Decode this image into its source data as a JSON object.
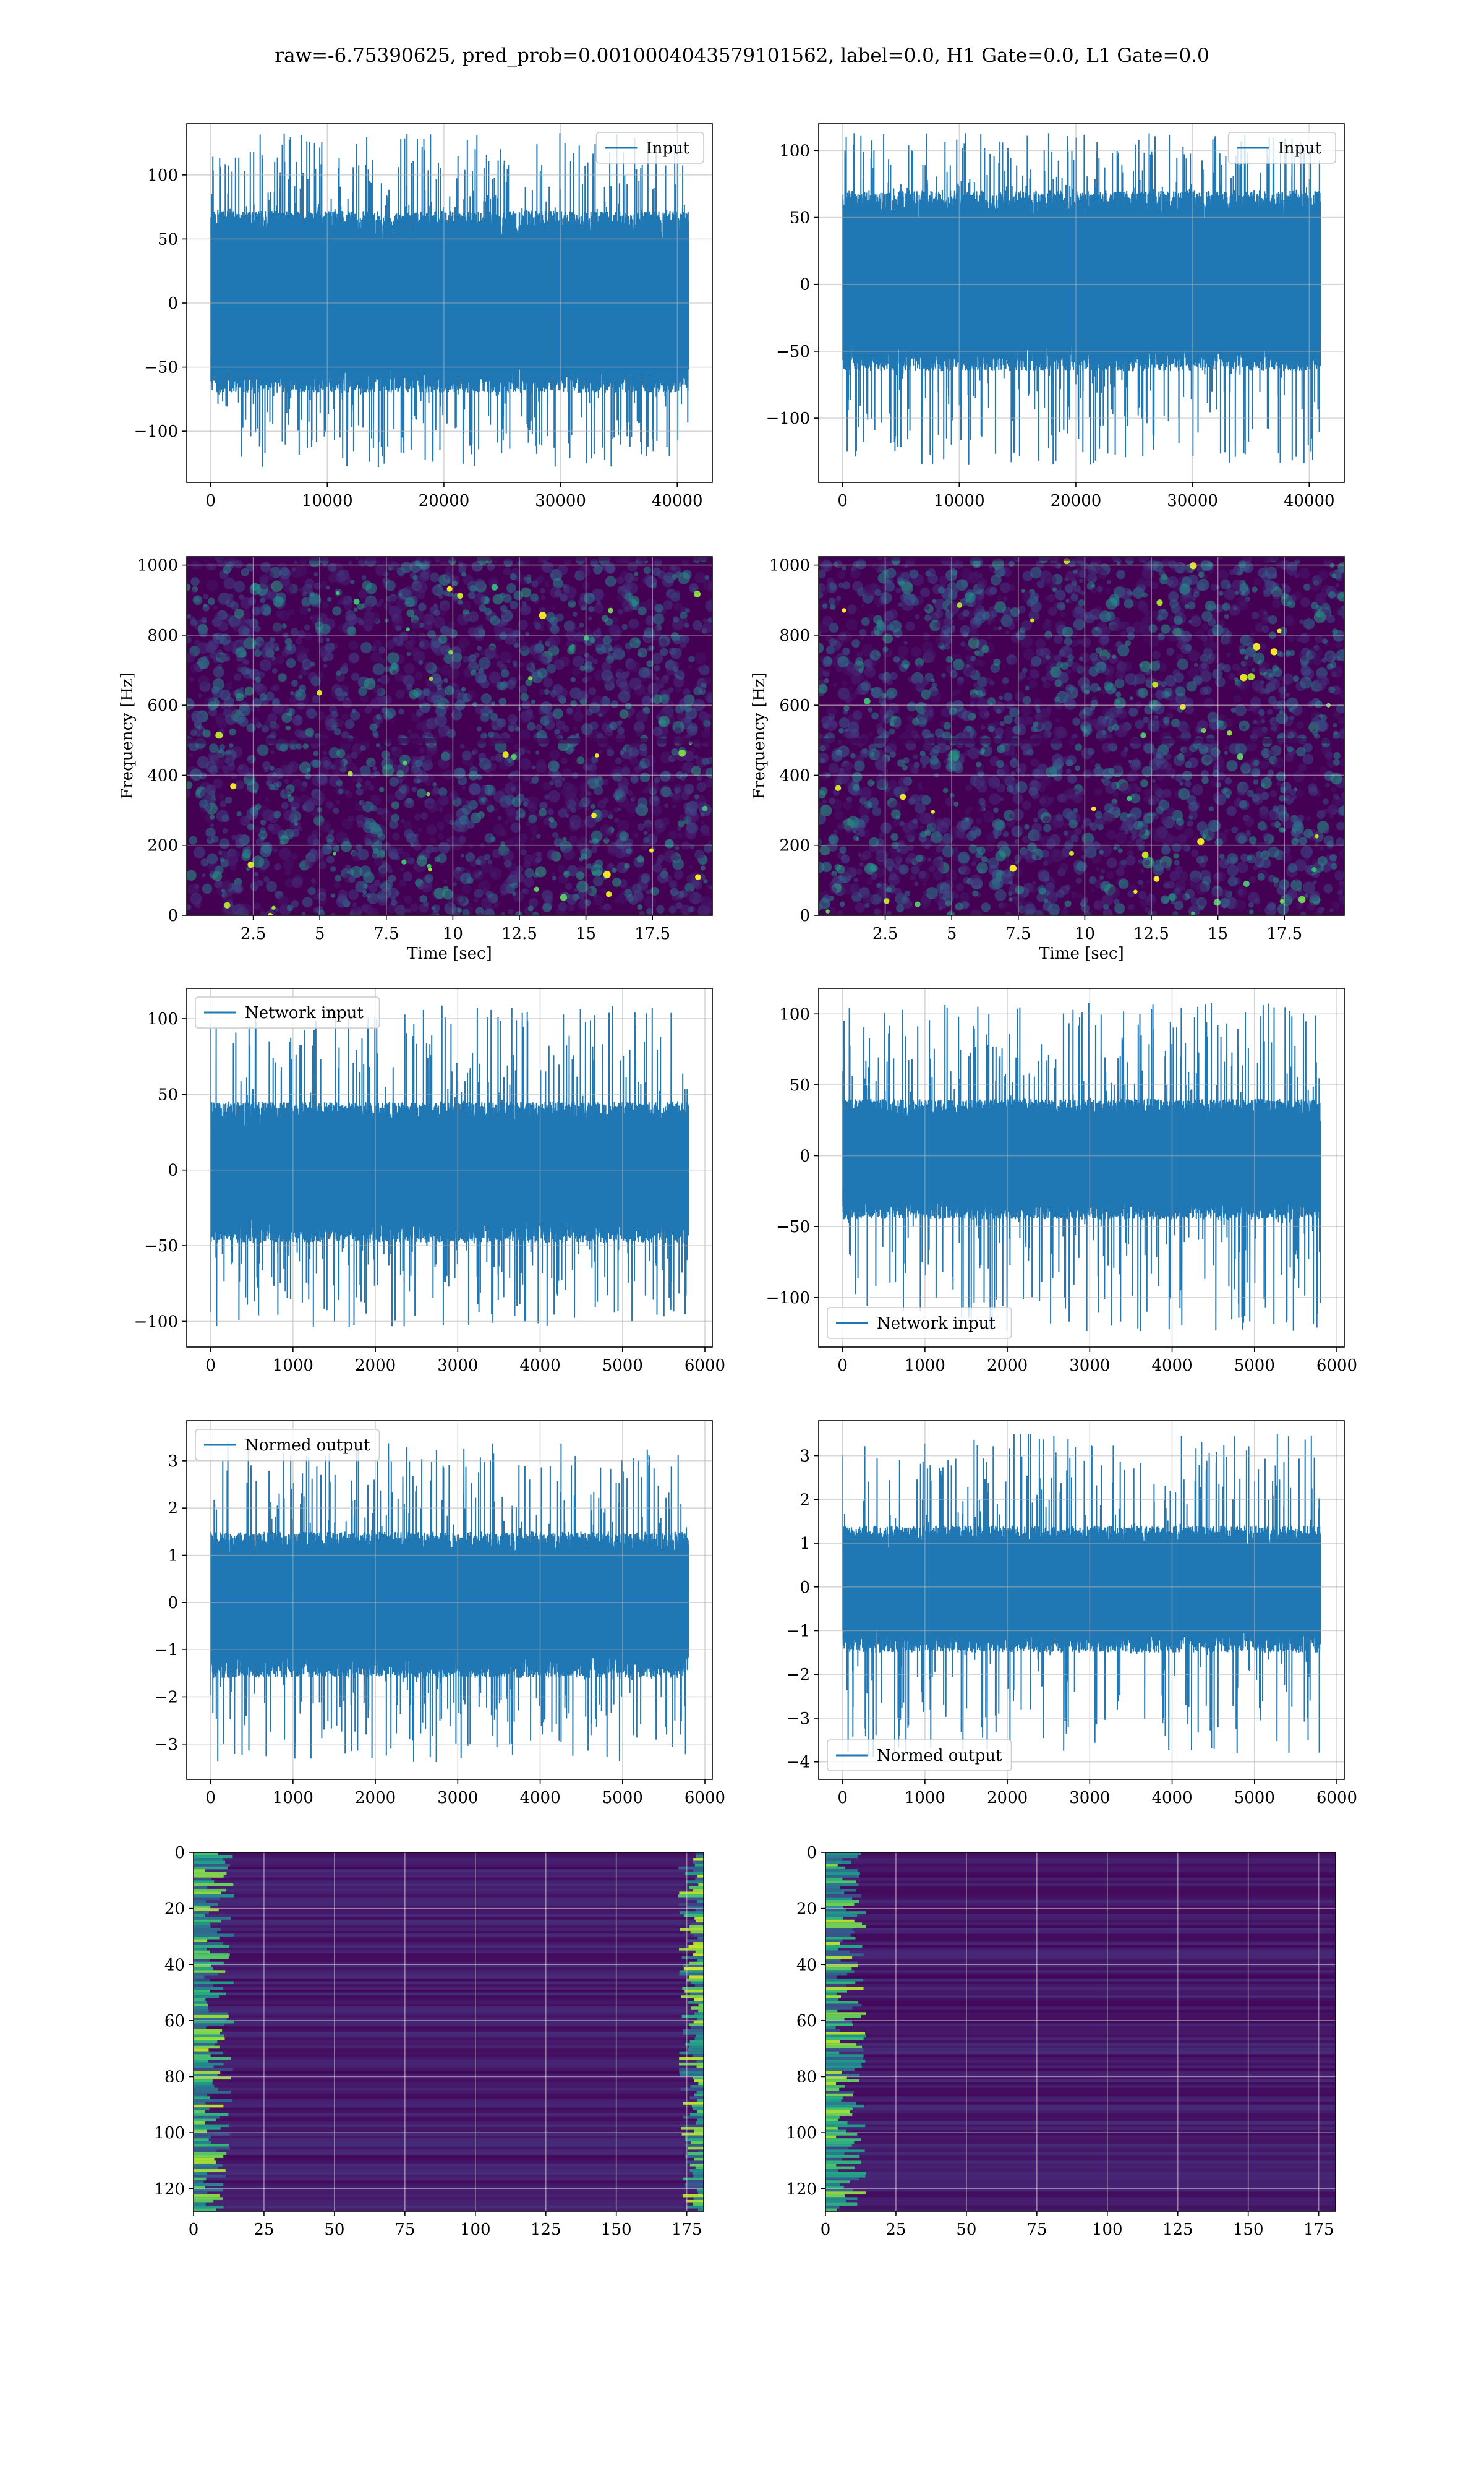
{
  "suptitle": "raw=-6.75390625, pred_prob=0.0010004043579101562, label=0.0, H1 Gate=0.0, L1 Gate=0.0",
  "colors": {
    "line": "#1f77b4",
    "grid": "#b0b0b0",
    "viridis_dark": "#440154",
    "viridis_low": "#3b0f70",
    "viridis_mid": "#31688e",
    "viridis_teal": "#35b779",
    "viridis_yellow": "#fde725"
  },
  "chart_data": [
    {
      "id": "h1-input",
      "type": "line",
      "series": [
        {
          "name": "Input",
          "color": "#1f77b4"
        }
      ],
      "legend_loc": "upper right",
      "xlim": [
        -2048,
        43008
      ],
      "ylim": [
        -140,
        140
      ],
      "xticks": [
        0,
        10000,
        20000,
        30000,
        40000
      ],
      "yticks": [
        -100,
        -50,
        0,
        50,
        100
      ],
      "signal": {
        "x_start": 0,
        "x_end": 40960,
        "n": 3000,
        "band": [
          -70,
          72
        ],
        "peaks": [
          -128,
          133
        ],
        "seed": 11
      },
      "grid": true
    },
    {
      "id": "l1-input",
      "type": "line",
      "series": [
        {
          "name": "Input",
          "color": "#1f77b4"
        }
      ],
      "legend_loc": "upper right",
      "xlim": [
        -2048,
        43008
      ],
      "ylim": [
        -148,
        120
      ],
      "xticks": [
        0,
        10000,
        20000,
        30000,
        40000
      ],
      "yticks": [
        -100,
        -50,
        0,
        50,
        100
      ],
      "signal": {
        "x_start": 0,
        "x_end": 40960,
        "n": 3000,
        "band": [
          -65,
          70
        ],
        "peaks": [
          -135,
          113
        ],
        "seed": 23
      },
      "grid": true
    },
    {
      "id": "h1-spectrogram",
      "type": "heatmap",
      "xlabel": "Time [sec]",
      "ylabel": "Frequency [Hz]",
      "xlim": [
        0,
        19.75
      ],
      "ylim": [
        0,
        1024
      ],
      "xticks": [
        2.5,
        5.0,
        7.5,
        10.0,
        12.5,
        15.0,
        17.5
      ],
      "yticks": [
        0,
        200,
        400,
        600,
        800,
        1000
      ],
      "colormap": "viridis",
      "seed": 5,
      "grid": true
    },
    {
      "id": "l1-spectrogram",
      "type": "heatmap",
      "xlabel": "Time [sec]",
      "ylabel": "Frequency [Hz]",
      "xlim": [
        0,
        19.75
      ],
      "ylim": [
        0,
        1024
      ],
      "xticks": [
        2.5,
        5.0,
        7.5,
        10.0,
        12.5,
        15.0,
        17.5
      ],
      "yticks": [
        0,
        200,
        400,
        600,
        800,
        1000
      ],
      "colormap": "viridis",
      "seed": 7,
      "grid": true
    },
    {
      "id": "h1-network-input",
      "type": "line",
      "series": [
        {
          "name": "Network input",
          "color": "#1f77b4"
        }
      ],
      "legend_loc": "upper left",
      "xlim": [
        -290,
        6090
      ],
      "ylim": [
        -117,
        120
      ],
      "xticks": [
        0,
        1000,
        2000,
        3000,
        4000,
        5000,
        6000
      ],
      "yticks": [
        -100,
        -50,
        0,
        50,
        100
      ],
      "signal": {
        "x_start": 0,
        "x_end": 5800,
        "n": 2600,
        "band": [
          -48,
          45
        ],
        "peaks": [
          -104,
          109
        ],
        "seed": 31
      },
      "grid": true
    },
    {
      "id": "l1-network-input",
      "type": "line",
      "series": [
        {
          "name": "Network input",
          "color": "#1f77b4"
        }
      ],
      "legend_loc": "lower left",
      "xlim": [
        -290,
        6090
      ],
      "ylim": [
        -135,
        118
      ],
      "xticks": [
        0,
        1000,
        2000,
        3000,
        4000,
        5000,
        6000
      ],
      "yticks": [
        -100,
        -50,
        0,
        50,
        100
      ],
      "signal": {
        "x_start": 0,
        "x_end": 5800,
        "n": 2600,
        "band": [
          -45,
          40
        ],
        "peaks": [
          -124,
          108
        ],
        "seed": 37
      },
      "grid": true
    },
    {
      "id": "h1-normed-output",
      "type": "line",
      "series": [
        {
          "name": "Normed output",
          "color": "#1f77b4"
        }
      ],
      "legend_loc": "upper left",
      "xlim": [
        -290,
        6090
      ],
      "ylim": [
        -3.75,
        3.85
      ],
      "xticks": [
        0,
        1000,
        2000,
        3000,
        4000,
        5000,
        6000
      ],
      "yticks": [
        -3,
        -2,
        -1,
        0,
        1,
        2,
        3
      ],
      "signal": {
        "x_start": 0,
        "x_end": 5800,
        "n": 2600,
        "band": [
          -1.6,
          1.5
        ],
        "peaks": [
          -3.4,
          3.4
        ],
        "seed": 41
      },
      "grid": true
    },
    {
      "id": "l1-normed-output",
      "type": "line",
      "series": [
        {
          "name": "Normed output",
          "color": "#1f77b4"
        }
      ],
      "legend_loc": "lower left",
      "xlim": [
        -290,
        6090
      ],
      "ylim": [
        -4.4,
        3.8
      ],
      "xticks": [
        0,
        1000,
        2000,
        3000,
        4000,
        5000,
        6000
      ],
      "yticks": [
        -4,
        -3,
        -2,
        -1,
        0,
        1,
        2,
        3
      ],
      "signal": {
        "x_start": 0,
        "x_end": 5800,
        "n": 2600,
        "band": [
          -1.5,
          1.4
        ],
        "peaks": [
          -3.9,
          3.5
        ],
        "seed": 43
      },
      "grid": true
    },
    {
      "id": "h1-feature-map",
      "type": "heatmap",
      "xlim": [
        0,
        181
      ],
      "ylim": [
        128,
        0
      ],
      "xticks": [
        0,
        25,
        50,
        75,
        100,
        125,
        150,
        175
      ],
      "yticks": [
        0,
        20,
        40,
        60,
        80,
        100,
        120
      ],
      "colormap": "viridis",
      "seed": 13,
      "edge": "both",
      "grid": true
    },
    {
      "id": "l1-feature-map",
      "type": "heatmap",
      "xlim": [
        0,
        181
      ],
      "ylim": [
        128,
        0
      ],
      "xticks": [
        0,
        25,
        50,
        75,
        100,
        125,
        150,
        175
      ],
      "yticks": [
        0,
        20,
        40,
        60,
        80,
        100,
        120
      ],
      "colormap": "viridis",
      "seed": 17,
      "edge": "left",
      "grid": true
    }
  ]
}
